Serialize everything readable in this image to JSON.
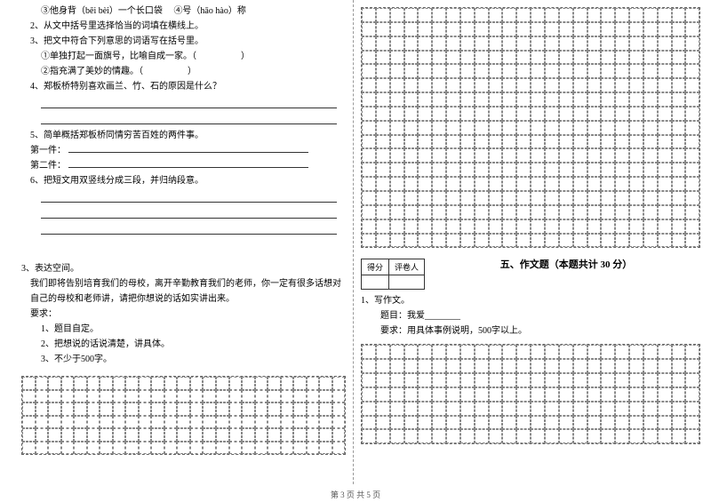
{
  "left": {
    "q1_part3": "③他身背（bēi bèi）一个长口袋",
    "q1_part4": "④号（hāo hào）称",
    "q2": "2、从文中括号里选择恰当的词填在横线上。",
    "q3": "3、把文中符合下列意思的词语写在括号里。",
    "q3_1": "①单独打起一面旗号，比喻自成一家。（　　　　　）",
    "q3_2": "②指充满了美妙的情趣。（　　　　　）",
    "q4": "4、郑板桥特别喜欢画兰、竹、石的原因是什么？",
    "q5": "5、简单概括郑板桥同情穷苦百姓的两件事。",
    "q5_1": "第一件：",
    "q5_2": "第二件：",
    "q6": "6、把短文用双竖线分成三段，并归纳段意。",
    "section3": "3、表达空间。",
    "essay_intro": "我们即将告别培育我们的母校，离开辛勤教育我们的老师，你一定有很多话想对自己的母校和老师讲，请把你想说的话如实讲出来。",
    "req_label": "要求：",
    "req1": "1、题目自定。",
    "req2": "2、把想说的话说清楚，讲具体。",
    "req3": "3、不少于500字。"
  },
  "right": {
    "score_label1": "得分",
    "score_label2": "评卷人",
    "section5_title": "五、作文题（本题共计 30 分）",
    "q1": "1、写作文。",
    "q1_sub1": "题目：我爱________",
    "q1_sub2": "要求：用具体事例说明，500字以上。"
  },
  "grids": {
    "left_cols": 25,
    "left_rows": 6,
    "right_top_cols": 24,
    "right_top_rows": 17,
    "right_bot_cols": 24,
    "right_bot_rows": 7,
    "cell_border": "#888"
  },
  "footer": "第 3 页 共 5 页"
}
